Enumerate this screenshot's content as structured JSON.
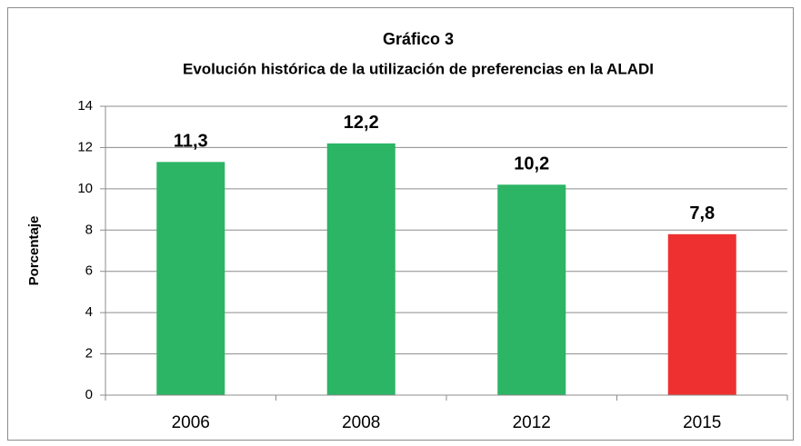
{
  "chart_data": {
    "type": "bar",
    "title": "Gráfico 3",
    "subtitle": "Evolución histórica de la utilización de preferencias en la ALADI",
    "y_label": "Porcentaje",
    "categories": [
      "2006",
      "2008",
      "2012",
      "2015"
    ],
    "values": [
      11.3,
      12.2,
      10.2,
      7.8
    ],
    "value_labels": [
      "11,3",
      "12,2",
      "10,2",
      "7,8"
    ],
    "colors": [
      "#2bb565",
      "#2bb565",
      "#2bb565",
      "#ee3130"
    ],
    "ylim": [
      0,
      14
    ],
    "yticks": [
      0,
      2,
      4,
      6,
      8,
      10,
      12,
      14
    ],
    "grid": true
  }
}
